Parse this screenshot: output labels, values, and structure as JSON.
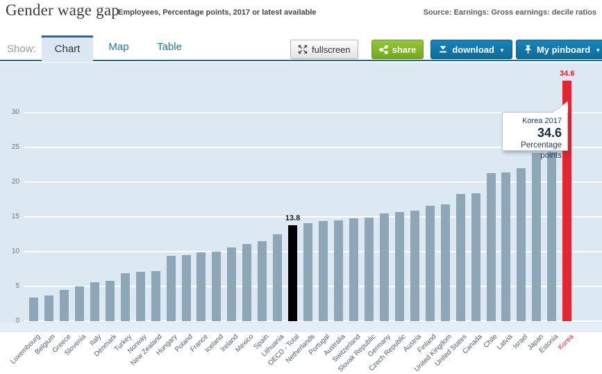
{
  "header": {
    "title": "Gender wage gap",
    "subtitle": "Employees, Percentage points, 2017 or latest available",
    "source": "Source: Earnings: Gross earnings: decile ratios"
  },
  "toolbar": {
    "show_label": "Show:",
    "tabs": [
      {
        "label": "Chart",
        "active": true
      },
      {
        "label": "Map",
        "active": false
      },
      {
        "label": "Table",
        "active": false
      }
    ],
    "fullscreen_label": "fullscreen",
    "share_label": "share",
    "download_label": "download",
    "pinboard_label": "My pinboard",
    "caret": "▼"
  },
  "tooltip": {
    "country": "Korea",
    "year": "2017",
    "value": "34.6",
    "unit": "Percentage points"
  },
  "chart_data": {
    "type": "bar",
    "title": "Gender wage gap",
    "ylabel": "Percentage points",
    "ylim": [
      0,
      37
    ],
    "yticks": [
      0,
      5,
      10,
      15,
      20,
      25,
      30
    ],
    "grid": true,
    "categories": [
      "Luxembourg",
      "Belgium",
      "Greece",
      "Slovenia",
      "Italy",
      "Denmark",
      "Turkey",
      "Norway",
      "New Zealand",
      "Hungary",
      "Poland",
      "France",
      "Iceland",
      "Ireland",
      "Mexico",
      "Spain",
      "Lithuania",
      "OECD - Total",
      "Netherlands",
      "Portugal",
      "Australia",
      "Switzerland",
      "Slovak Republic",
      "Germany",
      "Czech Republic",
      "Austria",
      "Finland",
      "United Kingdom",
      "United States",
      "Canada",
      "Chile",
      "Latvia",
      "Israel",
      "Japan",
      "Estonia",
      "Korea"
    ],
    "values": [
      3.4,
      3.7,
      4.5,
      5.0,
      5.6,
      5.8,
      6.9,
      7.1,
      7.2,
      9.4,
      9.5,
      9.9,
      10.0,
      10.6,
      11.1,
      11.5,
      12.5,
      13.8,
      14.1,
      14.4,
      14.5,
      14.8,
      14.9,
      15.5,
      15.7,
      15.9,
      16.6,
      16.8,
      18.3,
      18.4,
      21.3,
      21.4,
      22.0,
      24.2,
      24.3,
      34.6
    ],
    "bar_color": "#8ea7b6",
    "highlight_colors": {
      "OECD - Total": "#000000",
      "Korea": "#e12531"
    },
    "category_label_colors": {
      "Korea": "#e12531"
    },
    "annotations": [
      {
        "category": "OECD - Total",
        "text": "13.8",
        "color": "#1a1a1a"
      },
      {
        "category": "Korea",
        "text": "34.6",
        "color": "#e12531"
      }
    ],
    "background_color": "#dce9f2"
  }
}
